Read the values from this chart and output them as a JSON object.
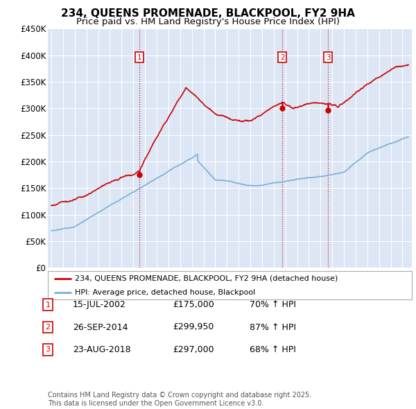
{
  "title": "234, QUEENS PROMENADE, BLACKPOOL, FY2 9HA",
  "subtitle": "Price paid vs. HM Land Registry's House Price Index (HPI)",
  "title_fontsize": 11,
  "subtitle_fontsize": 9.5,
  "background_color": "#ffffff",
  "plot_bg_color": "#dce6f5",
  "grid_color": "#ffffff",
  "ylim": [
    0,
    450000
  ],
  "yticks": [
    0,
    50000,
    100000,
    150000,
    200000,
    250000,
    300000,
    350000,
    400000,
    450000
  ],
  "ytick_labels": [
    "£0",
    "£50K",
    "£100K",
    "£150K",
    "£200K",
    "£250K",
    "£300K",
    "£350K",
    "£400K",
    "£450K"
  ],
  "sale_color": "#cc0000",
  "hpi_color": "#7bafd4",
  "sale_linewidth": 1.2,
  "hpi_linewidth": 1.2,
  "legend_sale_label": "234, QUEENS PROMENADE, BLACKPOOL, FY2 9HA (detached house)",
  "legend_hpi_label": "HPI: Average price, detached house, Blackpool",
  "transactions": [
    {
      "num": 1,
      "date": "15-JUL-2002",
      "x": 2002.54,
      "price": 175000,
      "pct": "70%",
      "dir": "↑"
    },
    {
      "num": 2,
      "date": "26-SEP-2014",
      "x": 2014.74,
      "price": 299950,
      "pct": "87%",
      "dir": "↑"
    },
    {
      "num": 3,
      "date": "23-AUG-2018",
      "x": 2018.65,
      "price": 297000,
      "pct": "68%",
      "dir": "↑"
    }
  ],
  "vline_color": "#cc0000",
  "vline_style": ":",
  "footnote": "Contains HM Land Registry data © Crown copyright and database right 2025.\nThis data is licensed under the Open Government Licence v3.0.",
  "footnote_fontsize": 7,
  "table_fontsize": 9,
  "marker_box_color": "#cc0000"
}
